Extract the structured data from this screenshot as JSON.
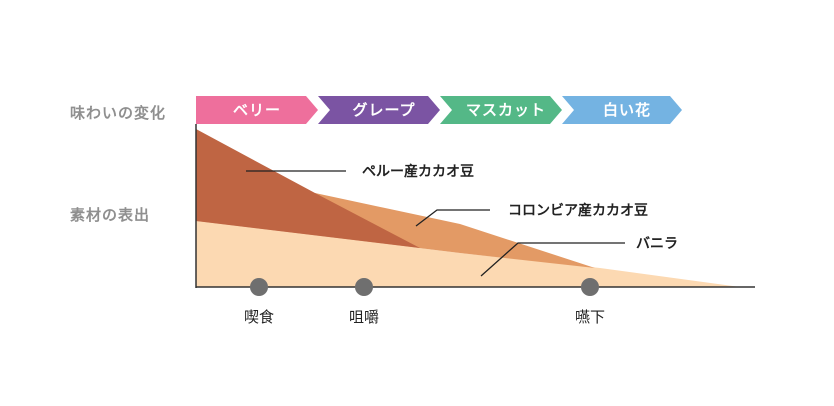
{
  "row_labels": {
    "taste_change": "味わいの変化",
    "ingredients": "素材の表出"
  },
  "stages": [
    {
      "label": "ベリー",
      "color": "#ee6f9c"
    },
    {
      "label": "グレープ",
      "color": "#7b54a3"
    },
    {
      "label": "マスカット",
      "color": "#54b887"
    },
    {
      "label": "白い花",
      "color": "#74b3e2"
    }
  ],
  "layers": [
    {
      "label": "ペルー産カカオ豆",
      "color": "#bf6543"
    },
    {
      "label": "コロンビア産カカオ豆",
      "color": "#e39a65"
    },
    {
      "label": "バニラ",
      "color": "#fcd9b2"
    }
  ],
  "points": [
    {
      "label": "喫食"
    },
    {
      "label": "咀嚼"
    },
    {
      "label": "嚥下"
    }
  ],
  "colors": {
    "axis": "#333333",
    "point": "#6f6f6f",
    "leader": "#222222"
  }
}
